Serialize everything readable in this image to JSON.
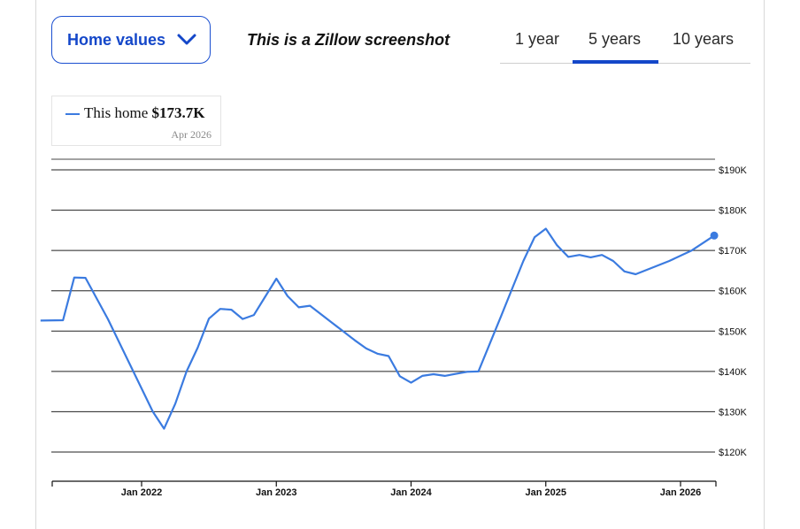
{
  "dropdown": {
    "label": "Home values"
  },
  "note": "This is a Zillow screenshot",
  "tabs": [
    {
      "label": "1 year",
      "selected": false
    },
    {
      "label": "5 years",
      "selected": true
    },
    {
      "label": "10 years",
      "selected": false
    }
  ],
  "legend": {
    "series_label": "This home",
    "value": "$173.7K",
    "date": "Apr 2026"
  },
  "colors": {
    "accent": "#1447c9",
    "series": "#3b7be0"
  },
  "chart_data": {
    "type": "line",
    "y_unit": "USD",
    "ylim": [
      120000,
      190000
    ],
    "y_ticks": [
      {
        "value": 190000,
        "label": "$190K"
      },
      {
        "value": 180000,
        "label": "$180K"
      },
      {
        "value": 170000,
        "label": "$170K"
      },
      {
        "value": 160000,
        "label": "$160K"
      },
      {
        "value": 150000,
        "label": "$150K"
      },
      {
        "value": 140000,
        "label": "$140K"
      },
      {
        "value": 130000,
        "label": "$130K"
      },
      {
        "value": 120000,
        "label": "$120K"
      }
    ],
    "x_ticks": [
      {
        "value": "2022-01",
        "label": "Jan 2022"
      },
      {
        "value": "2023-01",
        "label": "Jan 2023"
      },
      {
        "value": "2024-01",
        "label": "Jan 2024"
      },
      {
        "value": "2025-01",
        "label": "Jan 2025"
      },
      {
        "value": "2026-01",
        "label": "Jan 2026"
      }
    ],
    "grid": true,
    "y_axis_position": "right",
    "series": [
      {
        "name": "This home",
        "points": [
          [
            "2021-04",
            152600
          ],
          [
            "2021-06",
            152700
          ],
          [
            "2021-07",
            163300
          ],
          [
            "2021-08",
            163200
          ],
          [
            "2021-10",
            153000
          ],
          [
            "2021-12",
            141500
          ],
          [
            "2022-02",
            130000
          ],
          [
            "2022-03",
            125800
          ],
          [
            "2022-04",
            132000
          ],
          [
            "2022-05",
            140000
          ],
          [
            "2022-06",
            145900
          ],
          [
            "2022-07",
            153100
          ],
          [
            "2022-08",
            155500
          ],
          [
            "2022-09",
            155300
          ],
          [
            "2022-10",
            153000
          ],
          [
            "2022-11",
            154000
          ],
          [
            "2022-12",
            158500
          ],
          [
            "2023-01",
            163000
          ],
          [
            "2023-02",
            158700
          ],
          [
            "2023-03",
            155900
          ],
          [
            "2023-04",
            156300
          ],
          [
            "2023-06",
            152000
          ],
          [
            "2023-08",
            147700
          ],
          [
            "2023-09",
            145700
          ],
          [
            "2023-10",
            144400
          ],
          [
            "2023-11",
            143800
          ],
          [
            "2023-12",
            138800
          ],
          [
            "2024-01",
            137200
          ],
          [
            "2024-02",
            138900
          ],
          [
            "2024-03",
            139300
          ],
          [
            "2024-04",
            138900
          ],
          [
            "2024-05",
            139400
          ],
          [
            "2024-06",
            139900
          ],
          [
            "2024-07",
            140000
          ],
          [
            "2024-08",
            146800
          ],
          [
            "2024-09",
            153600
          ],
          [
            "2024-10",
            160500
          ],
          [
            "2024-11",
            167400
          ],
          [
            "2024-12",
            173300
          ],
          [
            "2025-01",
            175400
          ],
          [
            "2025-02",
            171300
          ],
          [
            "2025-03",
            168400
          ],
          [
            "2025-04",
            168900
          ],
          [
            "2025-05",
            168300
          ],
          [
            "2025-06",
            168900
          ],
          [
            "2025-07",
            167400
          ],
          [
            "2025-08",
            164800
          ],
          [
            "2025-09",
            164100
          ],
          [
            "2025-12",
            167400
          ],
          [
            "2026-02",
            170000
          ],
          [
            "2026-04",
            173700
          ]
        ]
      }
    ]
  }
}
